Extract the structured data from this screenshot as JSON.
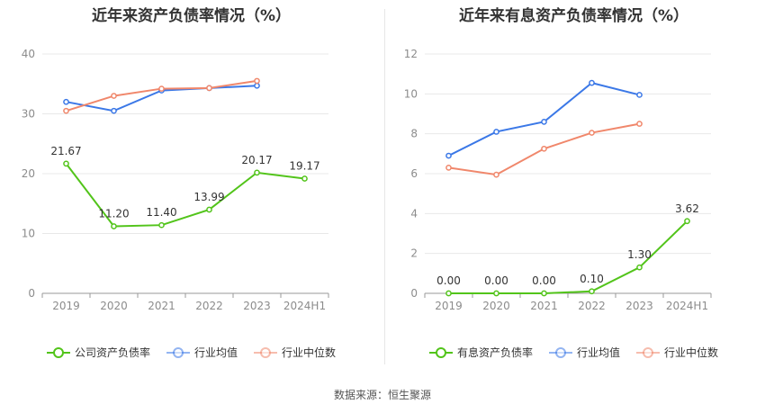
{
  "chart_data": [
    {
      "type": "line",
      "title": "近年来资产负债率情况（%）",
      "categories": [
        "2019",
        "2020",
        "2021",
        "2022",
        "2023",
        "2024H1"
      ],
      "ylim": [
        0,
        40
      ],
      "yticks": [
        0,
        10,
        20,
        30,
        40
      ],
      "grid": true,
      "legend_position": "bottom",
      "series": [
        {
          "name": "公司资产负债率",
          "color": "#52c41a",
          "values": [
            21.67,
            11.2,
            11.4,
            13.99,
            20.17,
            19.17
          ],
          "labels": [
            "21.67",
            "11.20",
            "11.40",
            "13.99",
            "20.17",
            "19.17"
          ]
        },
        {
          "name": "行业均值",
          "color": "#3b78e7",
          "values": [
            32.0,
            30.5,
            33.9,
            34.3,
            34.7,
            null
          ]
        },
        {
          "name": "行业中位数",
          "color": "#f0876b",
          "values": [
            30.5,
            33.0,
            34.2,
            34.3,
            35.5,
            null
          ]
        }
      ]
    },
    {
      "type": "line",
      "title": "近年来有息资产负债率情况（%）",
      "categories": [
        "2019",
        "2020",
        "2021",
        "2022",
        "2023",
        "2024H1"
      ],
      "ylim": [
        0,
        12
      ],
      "yticks": [
        0,
        2,
        4,
        6,
        8,
        10,
        12
      ],
      "grid": true,
      "legend_position": "bottom",
      "series": [
        {
          "name": "有息资产负债率",
          "color": "#52c41a",
          "values": [
            0.0,
            0.0,
            0.0,
            0.1,
            1.3,
            3.62
          ],
          "labels": [
            "0.00",
            "0.00",
            "0.00",
            "0.10",
            "1.30",
            "3.62"
          ]
        },
        {
          "name": "行业均值",
          "color": "#3b78e7",
          "values": [
            6.9,
            8.1,
            8.6,
            10.55,
            9.95,
            null
          ]
        },
        {
          "name": "行业中位数",
          "color": "#f0876b",
          "values": [
            6.3,
            5.95,
            7.25,
            8.05,
            8.5,
            null
          ]
        }
      ]
    }
  ],
  "source": "数据来源：恒生聚源"
}
